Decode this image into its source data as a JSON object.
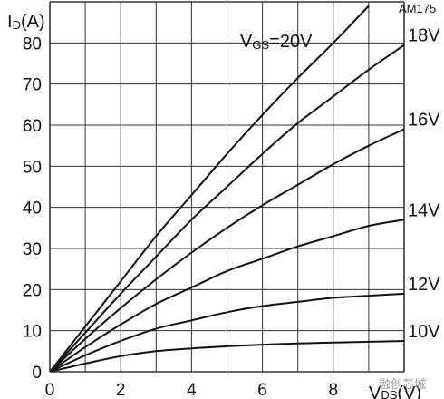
{
  "chart_data": {
    "type": "line",
    "figure_code": "AM175",
    "ylabel": {
      "main": "I",
      "sub": "D",
      "unit": "(A)"
    },
    "xlabel": {
      "main": "V",
      "sub": "DS",
      "unit": "(V)"
    },
    "gate_label": {
      "main": "V",
      "sub": "GS",
      "value": "=20V"
    },
    "xlim": [
      0,
      10
    ],
    "ylim": [
      0,
      90
    ],
    "x_ticks": [
      0,
      2,
      4,
      6,
      8
    ],
    "y_ticks": [
      0,
      10,
      20,
      30,
      40,
      50,
      60,
      70,
      80
    ],
    "grid": true,
    "series": [
      {
        "name": "20V",
        "label": "",
        "x": [
          0,
          1,
          2,
          3,
          4,
          5,
          6,
          7,
          8,
          9
        ],
        "y": [
          0,
          11,
          22,
          33,
          43,
          53,
          62.5,
          71.5,
          80,
          89
        ]
      },
      {
        "name": "18V",
        "label": "18V",
        "x": [
          0,
          1,
          2,
          3,
          4,
          5,
          6,
          7,
          8,
          9,
          10
        ],
        "y": [
          0,
          9.5,
          19,
          28,
          37,
          45,
          53,
          60.5,
          67,
          73.5,
          79.5
        ]
      },
      {
        "name": "16V",
        "label": "16V",
        "x": [
          0,
          1,
          2,
          3,
          4,
          5,
          6,
          7,
          8,
          9,
          10
        ],
        "y": [
          0,
          8,
          15.5,
          22.5,
          29,
          35,
          40.5,
          45.5,
          50.5,
          55,
          59
        ]
      },
      {
        "name": "14V",
        "label": "14V",
        "x": [
          0,
          1,
          2,
          3,
          4,
          5,
          6,
          7,
          8,
          9,
          10
        ],
        "y": [
          0,
          6,
          11.5,
          16.5,
          20.5,
          24.5,
          27.5,
          30.5,
          33,
          35.5,
          37
        ]
      },
      {
        "name": "12V",
        "label": "12V",
        "x": [
          0,
          1,
          2,
          3,
          4,
          5,
          6,
          7,
          8,
          9,
          10
        ],
        "y": [
          0,
          4,
          7.5,
          10.5,
          12.5,
          14.5,
          16,
          17,
          18,
          18.5,
          19
        ]
      },
      {
        "name": "10V",
        "label": "10V",
        "x": [
          0,
          1,
          2,
          3,
          4,
          5,
          6,
          7,
          8,
          9,
          10
        ],
        "y": [
          0,
          2,
          3.8,
          5,
          5.7,
          6.2,
          6.6,
          6.9,
          7.1,
          7.3,
          7.5
        ]
      }
    ]
  },
  "watermark": "融创芯城"
}
